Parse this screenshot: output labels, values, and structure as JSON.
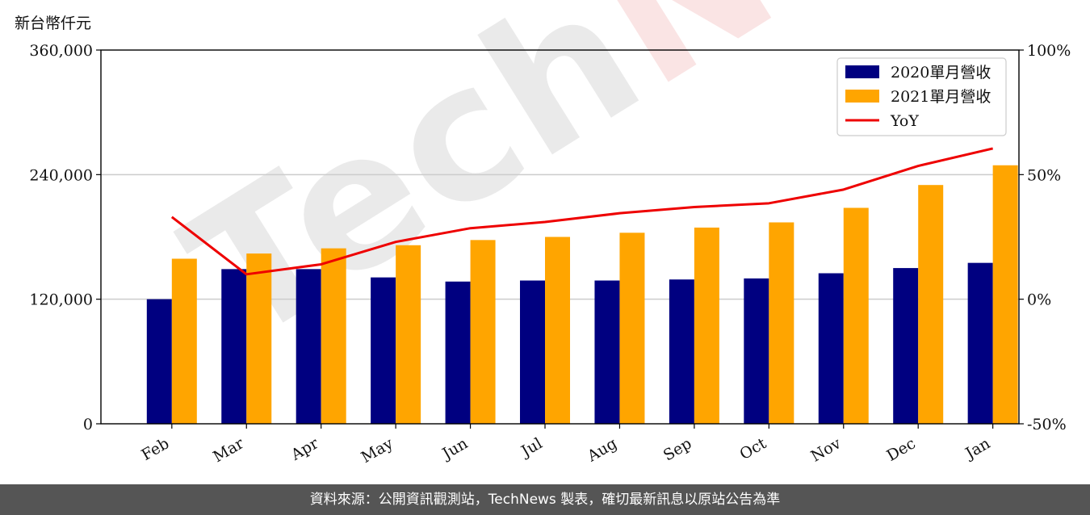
{
  "unit_label": "新台幣仟元",
  "watermark": {
    "part1": "Tech",
    "part2": "News"
  },
  "footer_text": "資料來源：公開資訊觀測站，TechNews 製表，確切最新訊息以原站公告為準",
  "colors": {
    "series_2020": "#000080",
    "series_2021": "#FFA500",
    "yoy": "#EE0000",
    "grid": "#CCCCCC",
    "footer_bg": "#555555"
  },
  "chart_data": {
    "type": "bar",
    "categories": [
      "Feb",
      "Mar",
      "Apr",
      "May",
      "Jun",
      "Jul",
      "Aug",
      "Sep",
      "Oct",
      "Nov",
      "Dec",
      "Jan"
    ],
    "series": [
      {
        "name": "2020單月營收",
        "values": [
          120000,
          149000,
          149000,
          141000,
          137000,
          138000,
          138000,
          139000,
          140000,
          145000,
          150000,
          155000
        ]
      },
      {
        "name": "2021單月營收",
        "values": [
          159000,
          164000,
          169000,
          172000,
          177000,
          180000,
          184000,
          189000,
          194000,
          208000,
          230000,
          249000
        ]
      }
    ],
    "line_series": {
      "name": "YoY",
      "axis": "right",
      "values": [
        33,
        10,
        14,
        23,
        28.5,
        31,
        34.5,
        37,
        38.5,
        44,
        53.5,
        60.5
      ]
    },
    "y_left": {
      "ylim": [
        0,
        360000
      ],
      "ticks": [
        "0",
        "120,000",
        "240,000",
        "360,000"
      ],
      "tick_values": [
        0,
        120000,
        240000,
        360000
      ]
    },
    "y_right": {
      "ylim": [
        -50,
        100
      ],
      "ticks": [
        "-50%",
        "0%",
        "50%",
        "100%"
      ],
      "tick_values": [
        -50,
        0,
        50,
        100
      ]
    },
    "grid": "horizontal",
    "legend_position": "top-right",
    "legend": [
      "2020單月營收",
      "2021單月營收",
      "YoY"
    ]
  }
}
